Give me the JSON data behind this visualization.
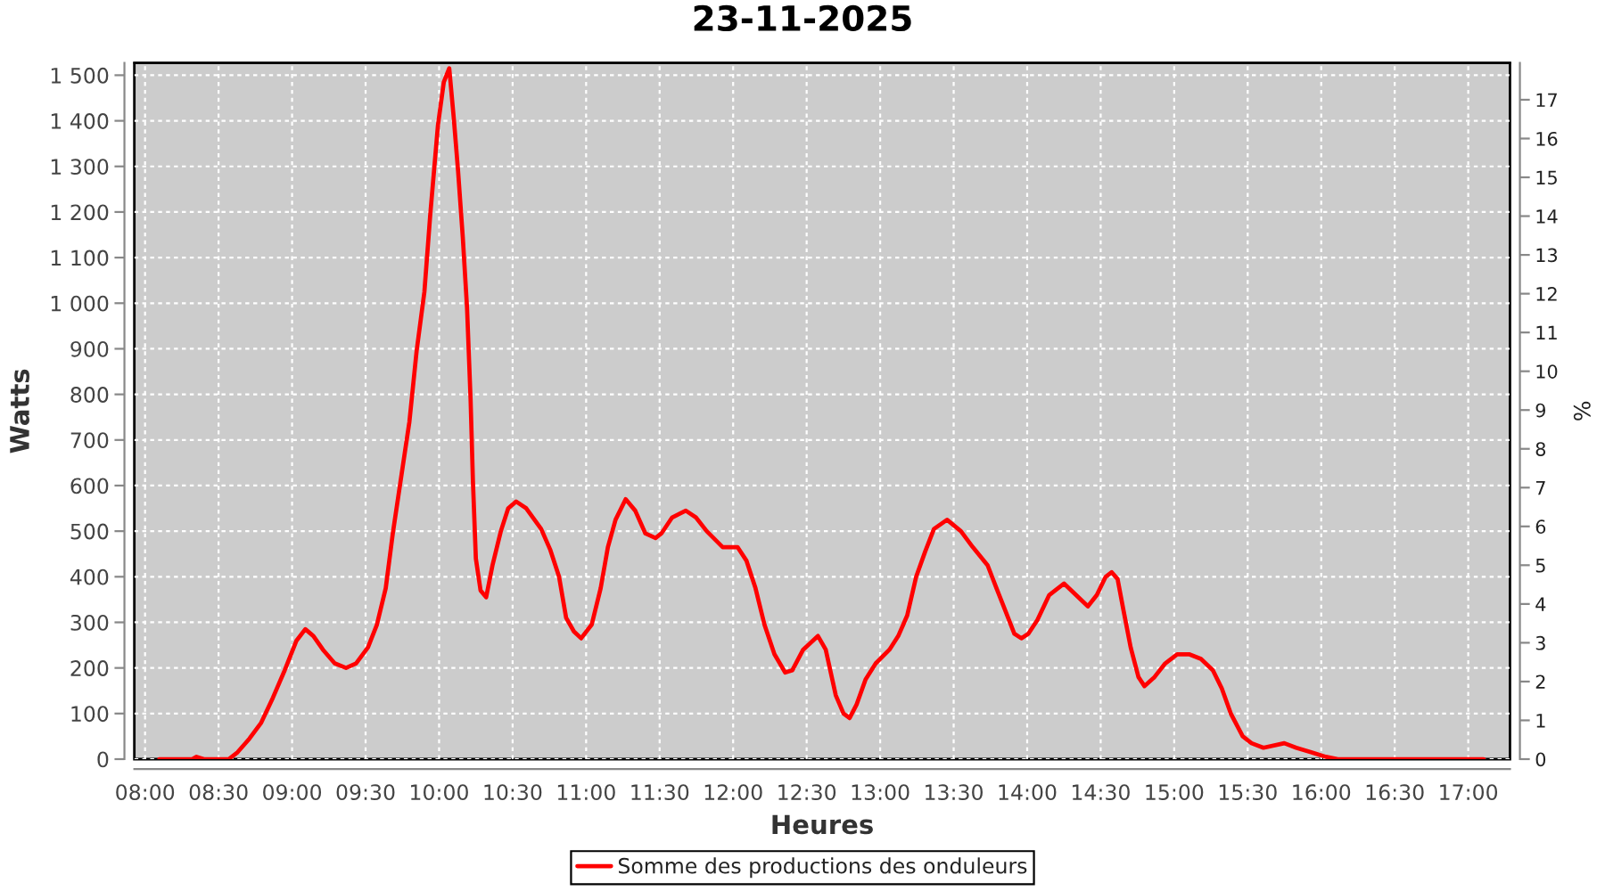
{
  "chart_data": {
    "type": "line",
    "title": "23-11-2025",
    "xlabel": "Heures",
    "ylabel": "Watts",
    "y2label": "%",
    "xlim": [
      7.927,
      17.284
    ],
    "xticks": [
      {
        "value": 8,
        "label": "08:00"
      },
      {
        "value": 8.5,
        "label": "08:30"
      },
      {
        "value": 9,
        "label": "09:00"
      },
      {
        "value": 9.5,
        "label": "09:30"
      },
      {
        "value": 10,
        "label": "10:00"
      },
      {
        "value": 10.5,
        "label": "10:30"
      },
      {
        "value": 11,
        "label": "11:00"
      },
      {
        "value": 11.5,
        "label": "11:30"
      },
      {
        "value": 12,
        "label": "12:00"
      },
      {
        "value": 12.5,
        "label": "12:30"
      },
      {
        "value": 13,
        "label": "13:00"
      },
      {
        "value": 13.5,
        "label": "13:30"
      },
      {
        "value": 14,
        "label": "14:00"
      },
      {
        "value": 14.5,
        "label": "14:30"
      },
      {
        "value": 15,
        "label": "15:00"
      },
      {
        "value": 15.5,
        "label": "15:30"
      },
      {
        "value": 16,
        "label": "16:00"
      },
      {
        "value": 16.5,
        "label": "16:30"
      },
      {
        "value": 17,
        "label": "17:00"
      }
    ],
    "ylim": [
      0,
      1527
    ],
    "yticks": [
      0,
      100,
      200,
      300,
      400,
      500,
      600,
      700,
      800,
      900,
      {
        "value": 1000,
        "label": "1 000"
      },
      {
        "value": 1100,
        "label": "1 100"
      },
      {
        "value": 1200,
        "label": "1 200"
      },
      {
        "value": 1300,
        "label": "1 300"
      },
      {
        "value": 1400,
        "label": "1 400"
      },
      {
        "value": 1500,
        "label": "1 500"
      }
    ],
    "y2lim": [
      0,
      17.95
    ],
    "y2ticks": [
      0,
      1,
      2,
      3,
      4,
      5,
      6,
      7,
      8,
      9,
      10,
      11,
      12,
      13,
      14,
      15,
      16,
      17
    ],
    "grid": true,
    "legend": "bottom",
    "series": [
      {
        "name": "Somme des productions des onduleurs",
        "color": "#ff0000",
        "x": [
          8.097,
          8.32,
          8.35,
          8.4,
          8.569,
          8.629,
          8.71,
          8.79,
          8.87,
          8.95,
          9.03,
          9.09,
          9.145,
          9.21,
          9.29,
          9.367,
          9.435,
          9.516,
          9.577,
          9.637,
          9.685,
          9.738,
          9.798,
          9.847,
          9.9,
          9.94,
          9.992,
          10.032,
          10.069,
          10.1,
          10.129,
          10.161,
          10.19,
          10.214,
          10.23,
          10.25,
          10.282,
          10.32,
          10.363,
          10.42,
          10.47,
          10.524,
          10.593,
          10.694,
          10.755,
          10.816,
          10.864,
          10.917,
          10.966,
          11.038,
          11.099,
          11.148,
          11.2,
          11.269,
          11.334,
          11.403,
          11.472,
          11.512,
          11.585,
          11.678,
          11.747,
          11.82,
          11.929,
          12.03,
          12.091,
          12.152,
          12.213,
          12.281,
          12.354,
          12.403,
          12.476,
          12.577,
          12.63,
          12.698,
          12.751,
          12.792,
          12.84,
          12.901,
          12.97,
          13.063,
          13.123,
          13.184,
          13.245,
          13.306,
          13.366,
          13.455,
          13.549,
          13.63,
          13.731,
          13.791,
          13.852,
          13.913,
          13.96,
          14.008,
          14.069,
          14.15,
          14.251,
          14.332,
          14.413,
          14.474,
          14.534,
          14.575,
          14.615,
          14.656,
          14.704,
          14.757,
          14.798,
          14.866,
          14.939,
          15.02,
          15.101,
          15.182,
          15.263,
          15.324,
          15.385,
          15.466,
          15.526,
          15.607,
          15.749,
          15.83,
          15.931,
          16.032,
          16.113,
          17.105
        ],
        "values": [
          0,
          0,
          5,
          0,
          0,
          15,
          45,
          80,
          135,
          195,
          260,
          285,
          270,
          240,
          210,
          200,
          210,
          245,
          295,
          375,
          495,
          610,
          740,
          895,
          1025,
          1195,
          1390,
          1485,
          1515,
          1405,
          1290,
          1145,
          990,
          790,
          610,
          440,
          370,
          355,
          425,
          500,
          550,
          565,
          550,
          505,
          460,
          400,
          310,
          280,
          265,
          295,
          375,
          465,
          525,
          570,
          545,
          495,
          485,
          495,
          530,
          545,
          530,
          500,
          465,
          465,
          435,
          375,
          295,
          230,
          190,
          195,
          240,
          270,
          240,
          140,
          100,
          90,
          120,
          175,
          210,
          240,
          270,
          315,
          400,
          455,
          505,
          525,
          500,
          465,
          425,
          375,
          325,
          275,
          265,
          275,
          305,
          360,
          385,
          360,
          335,
          360,
          400,
          410,
          395,
          325,
          245,
          180,
          160,
          180,
          210,
          230,
          230,
          220,
          195,
          155,
          100,
          50,
          35,
          25,
          35,
          25,
          15,
          5,
          0,
          0
        ]
      }
    ]
  }
}
